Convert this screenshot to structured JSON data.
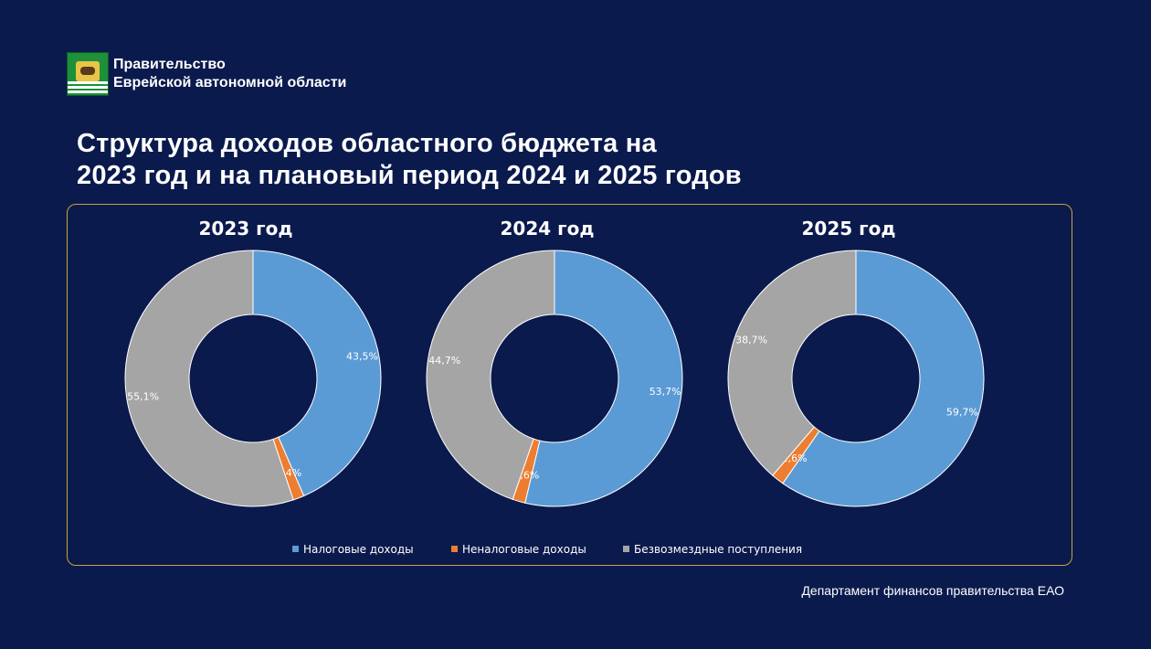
{
  "organization": {
    "line1": "Правительство",
    "line2": "Еврейской автономной области"
  },
  "title": {
    "line1": "Структура доходов областного бюджета на",
    "line2": "2023 год и на плановый период 2024 и 2025 годов"
  },
  "chart_data": {
    "type": "pie",
    "style": "donut",
    "categories": [
      "Налоговые доходы",
      "Неналоговые доходы",
      "Безвозмездные поступления"
    ],
    "colors": [
      "#5b9bd5",
      "#ed7d31",
      "#a5a5a5"
    ],
    "legend_position": "bottom",
    "charts": [
      {
        "title": "2023 год",
        "values": [
          43.5,
          1.4,
          55.1
        ],
        "labels": [
          "43,5%",
          "1,4%",
          "55,1%"
        ]
      },
      {
        "title": "2024 год",
        "values": [
          53.7,
          1.6,
          44.7
        ],
        "labels": [
          "53,7%",
          "1,6%",
          "44,7%"
        ]
      },
      {
        "title": "2025 год",
        "values": [
          59.7,
          1.6,
          38.7
        ],
        "labels": [
          "59,7%",
          "1,6%",
          "38,7%"
        ]
      }
    ]
  },
  "footer": "Департамент финансов правительства ЕАО"
}
